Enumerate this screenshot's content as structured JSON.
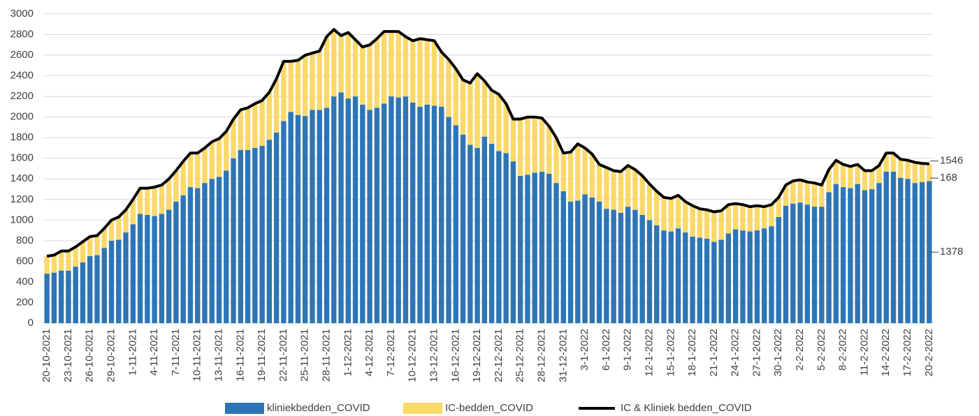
{
  "chart_data": {
    "type": "bar",
    "stacked": true,
    "grid": true,
    "ylim": [
      0,
      3000
    ],
    "yticks": [
      0,
      200,
      400,
      600,
      800,
      1000,
      1200,
      1400,
      1600,
      1800,
      2000,
      2200,
      2400,
      2600,
      2800,
      3000
    ],
    "categories": [
      "20-10-2021",
      null,
      null,
      "23-10-2021",
      null,
      null,
      "26-10-2021",
      null,
      null,
      "29-10-2021",
      null,
      null,
      "1-11-2021",
      null,
      null,
      "4-11-2021",
      null,
      null,
      "7-11-2021",
      null,
      null,
      "10-11-2021",
      null,
      null,
      "13-11-2021",
      null,
      null,
      "16-11-2021",
      null,
      null,
      "19-11-2021",
      null,
      null,
      "22-11-2021",
      null,
      null,
      "25-11-2021",
      null,
      null,
      "28-11-2021",
      null,
      null,
      "1-12-2021",
      null,
      null,
      "4-12-2021",
      null,
      null,
      "7-12-2021",
      null,
      null,
      "10-12-2021",
      null,
      null,
      "13-12-2021",
      null,
      null,
      "16-12-2021",
      null,
      null,
      "19-12-2021",
      null,
      null,
      "22-12-2021",
      null,
      null,
      "25-12-2021",
      null,
      null,
      "28-12-2021",
      null,
      null,
      "31-12-2021",
      null,
      null,
      "3-1-2022",
      null,
      null,
      "6-1-2022",
      null,
      null,
      "9-1-2022",
      null,
      null,
      "12-1-2022",
      null,
      null,
      "15-1-2022",
      null,
      null,
      "18-1-2022",
      null,
      null,
      "21-1-2022",
      null,
      null,
      "24-1-2022",
      null,
      null,
      "27-1-2022",
      null,
      null,
      "30-1-2022",
      null,
      null,
      "2-2-2022",
      null,
      null,
      "5-2-2022",
      null,
      null,
      "8-2-2022",
      null,
      null,
      "11-2-2022",
      null,
      null,
      "14-2-2022",
      null,
      null,
      "17-2-2022",
      null,
      null,
      "20-2-2022"
    ],
    "series": [
      {
        "name": "kliniekbedden_COVID",
        "color": "#2e75b6",
        "values": [
          480,
          490,
          510,
          510,
          550,
          590,
          650,
          660,
          730,
          800,
          810,
          880,
          960,
          1060,
          1050,
          1040,
          1060,
          1100,
          1180,
          1240,
          1320,
          1310,
          1360,
          1400,
          1420,
          1480,
          1600,
          1680,
          1680,
          1700,
          1720,
          1780,
          1850,
          1960,
          2050,
          2020,
          2010,
          2070,
          2070,
          2090,
          2200,
          2240,
          2180,
          2200,
          2120,
          2070,
          2090,
          2130,
          2200,
          2190,
          2200,
          2140,
          2100,
          2120,
          2110,
          2100,
          2000,
          1920,
          1830,
          1730,
          1700,
          1810,
          1740,
          1670,
          1650,
          1570,
          1430,
          1440,
          1460,
          1470,
          1450,
          1360,
          1280,
          1180,
          1190,
          1250,
          1220,
          1180,
          1110,
          1100,
          1070,
          1130,
          1100,
          1050,
          1000,
          950,
          900,
          890,
          920,
          880,
          840,
          830,
          820,
          790,
          810,
          870,
          910,
          900,
          890,
          900,
          920,
          940,
          1030,
          1140,
          1160,
          1170,
          1150,
          1130,
          1130,
          1270,
          1350,
          1320,
          1310,
          1350,
          1290,
          1300,
          1360,
          1470,
          1470,
          1410,
          1400,
          1360,
          1370,
          1378
        ]
      },
      {
        "name": "IC-bedden_COVID",
        "color": "#fad96b",
        "values": [
          170,
          170,
          190,
          190,
          190,
          200,
          190,
          190,
          190,
          200,
          220,
          220,
          240,
          250,
          260,
          280,
          280,
          300,
          300,
          330,
          330,
          340,
          340,
          360,
          370,
          380,
          380,
          390,
          410,
          430,
          440,
          460,
          520,
          580,
          490,
          530,
          590,
          550,
          570,
          690,
          650,
          550,
          640,
          550,
          560,
          630,
          670,
          700,
          630,
          640,
          580,
          600,
          660,
          630,
          630,
          530,
          560,
          550,
          530,
          600,
          720,
          540,
          520,
          550,
          480,
          410,
          550,
          560,
          540,
          520,
          460,
          440,
          370,
          480,
          550,
          450,
          420,
          360,
          400,
          380,
          400,
          400,
          390,
          380,
          350,
          330,
          320,
          320,
          320,
          300,
          300,
          280,
          280,
          290,
          280,
          280,
          250,
          250,
          240,
          240,
          210,
          210,
          190,
          200,
          220,
          220,
          220,
          230,
          210,
          220,
          230,
          220,
          210,
          190,
          190,
          180,
          170,
          180,
          180,
          180,
          180,
          200,
          180,
          168
        ]
      },
      {
        "name": "IC & Kliniek bedden_COVID",
        "type": "line",
        "color": "#000000",
        "values": [
          650,
          660,
          700,
          700,
          740,
          790,
          840,
          850,
          920,
          1000,
          1030,
          1100,
          1200,
          1310,
          1310,
          1320,
          1340,
          1400,
          1480,
          1570,
          1650,
          1650,
          1700,
          1760,
          1790,
          1860,
          1980,
          2070,
          2090,
          2130,
          2160,
          2240,
          2370,
          2540,
          2540,
          2550,
          2600,
          2620,
          2640,
          2780,
          2850,
          2790,
          2820,
          2750,
          2680,
          2700,
          2760,
          2830,
          2830,
          2830,
          2780,
          2740,
          2760,
          2750,
          2740,
          2630,
          2560,
          2470,
          2360,
          2330,
          2420,
          2350,
          2260,
          2220,
          2130,
          1980,
          1980,
          2000,
          2000,
          1990,
          1910,
          1800,
          1650,
          1660,
          1740,
          1700,
          1640,
          1540,
          1510,
          1480,
          1470,
          1530,
          1490,
          1430,
          1350,
          1280,
          1220,
          1210,
          1240,
          1180,
          1140,
          1110,
          1100,
          1080,
          1090,
          1150,
          1160,
          1150,
          1130,
          1140,
          1130,
          1150,
          1220,
          1340,
          1380,
          1390,
          1370,
          1360,
          1340,
          1490,
          1580,
          1540,
          1520,
          1540,
          1480,
          1480,
          1530,
          1650,
          1650,
          1590,
          1580,
          1560,
          1550,
          1546
        ]
      }
    ]
  }
}
